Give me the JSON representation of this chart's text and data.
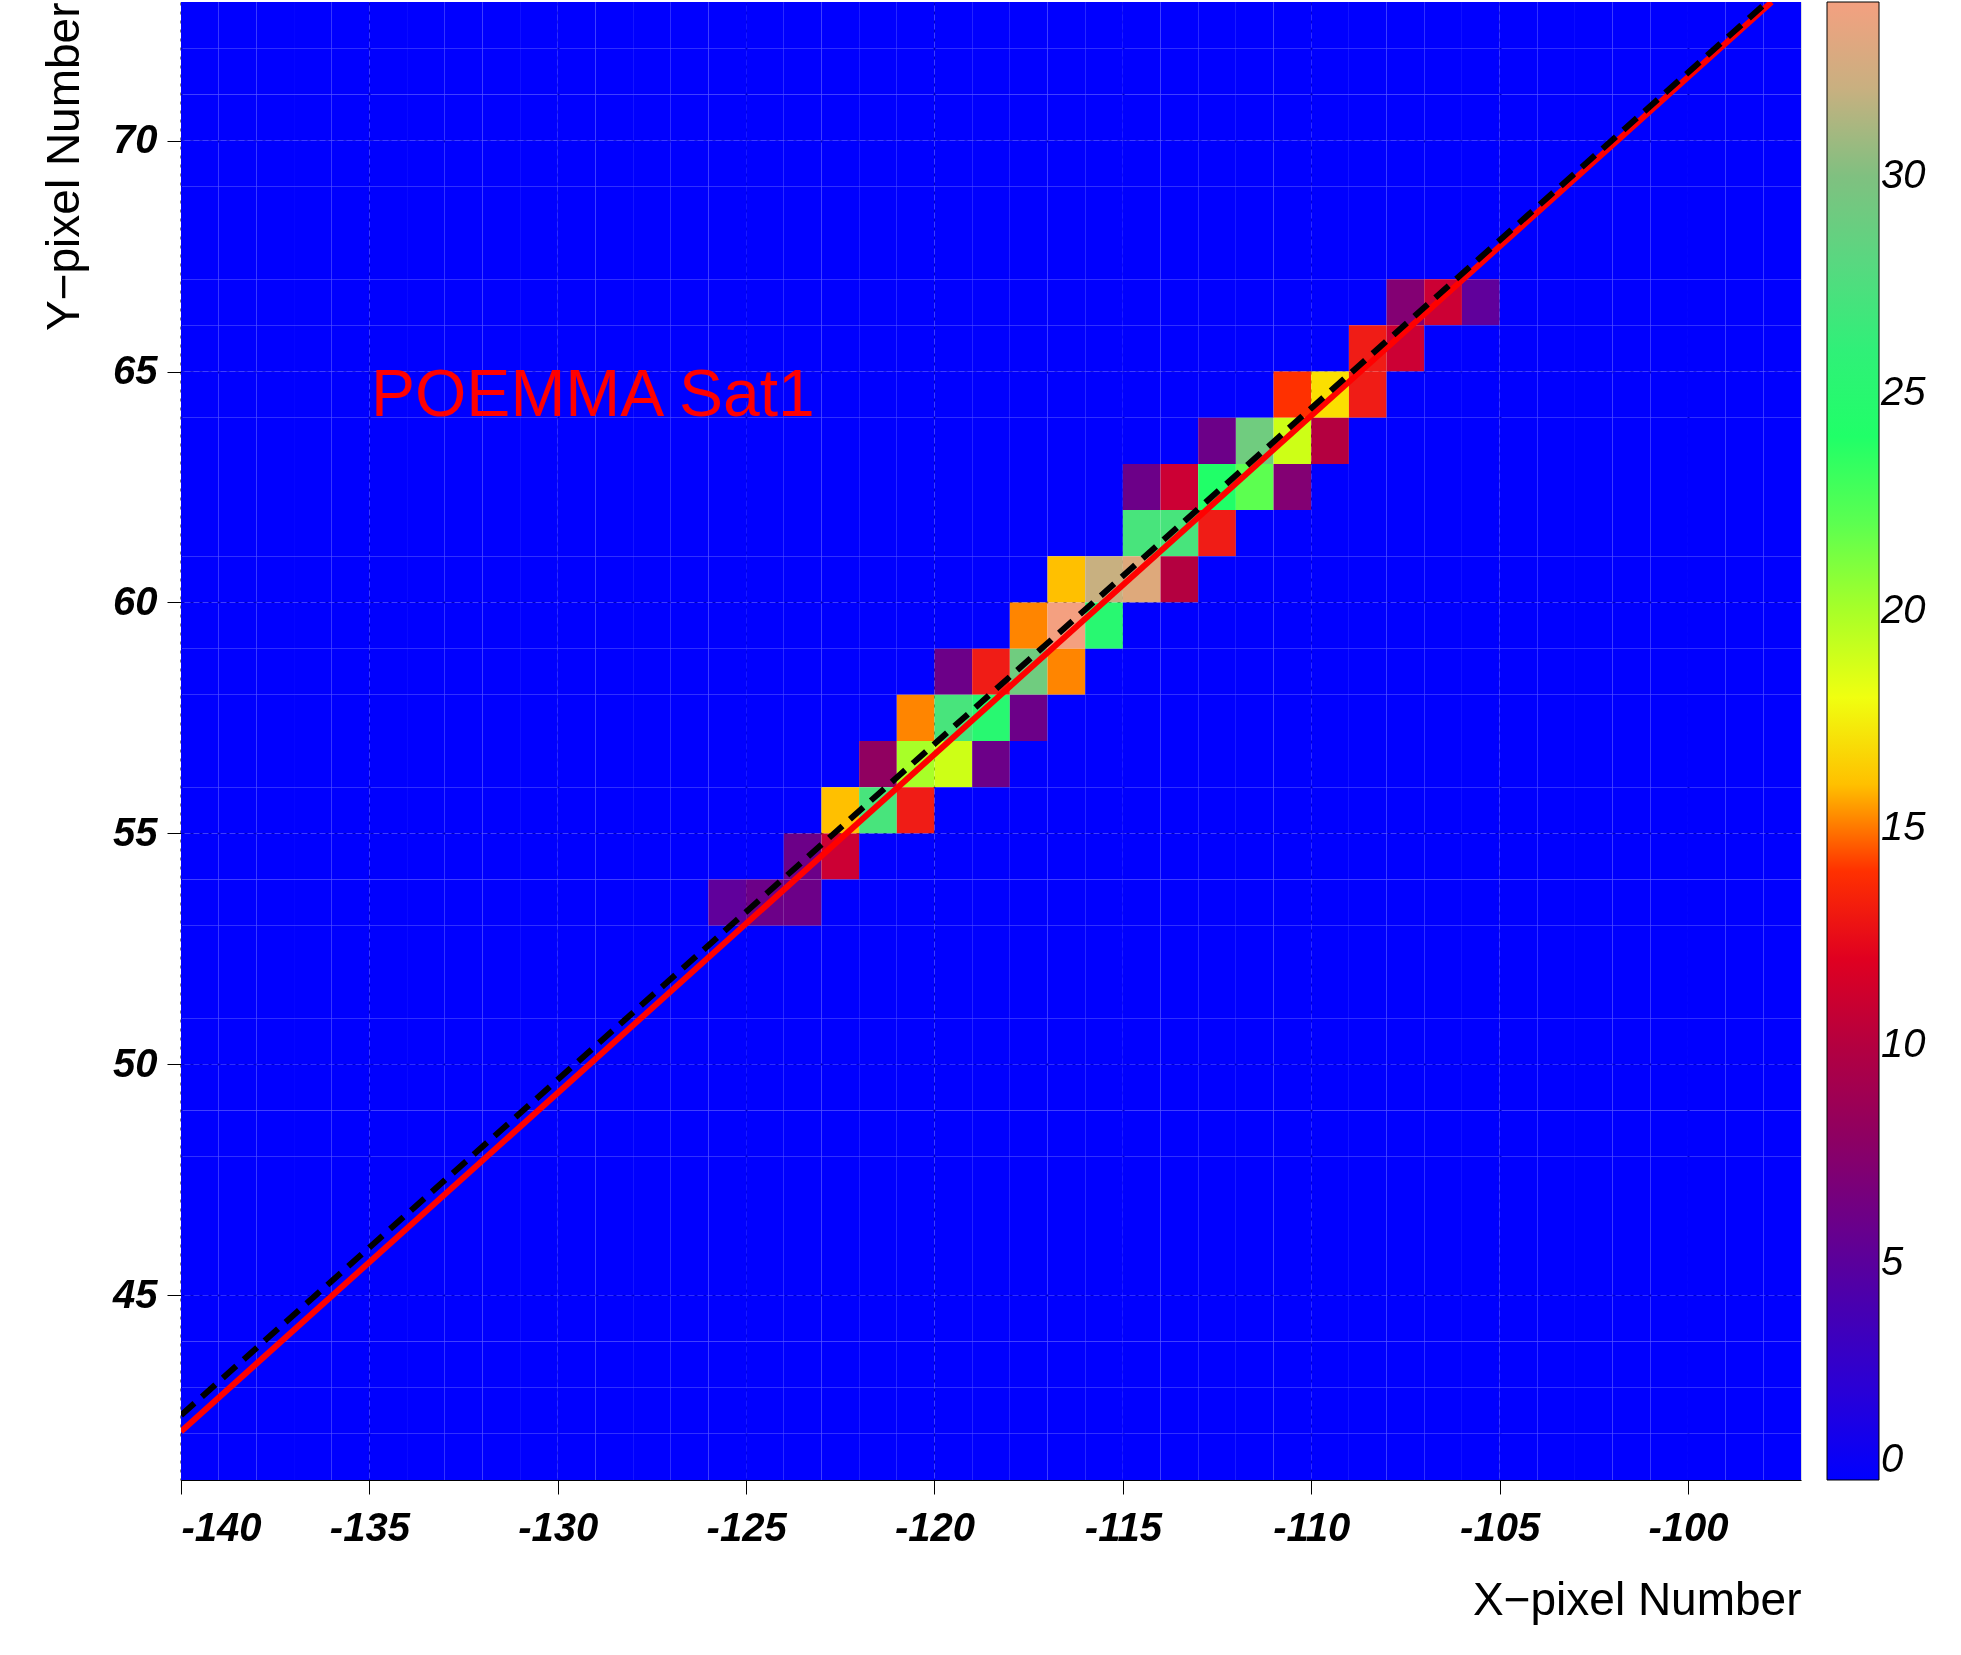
{
  "chart_data": {
    "type": "heatmap",
    "xlabel": "X−pixel Number",
    "ylabel": "Y−pixel Number",
    "annotations": [
      "POEMMA Sat1"
    ],
    "xlim": [
      -140,
      -97
    ],
    "ylim": [
      41,
      73
    ],
    "xticks": [
      -140,
      -135,
      -130,
      -125,
      -120,
      -115,
      -110,
      -105,
      -100
    ],
    "yticks": [
      45,
      50,
      55,
      60,
      65,
      70
    ],
    "clim": [
      0,
      34
    ],
    "cticks": [
      0,
      5,
      10,
      15,
      20,
      25,
      30
    ],
    "grid": true,
    "x": [
      -139.5,
      -138.5,
      -137.5,
      -136.5,
      -135.5,
      -134.5,
      -133.5,
      -132.5,
      -131.5,
      -130.5,
      -129.5,
      -128.5,
      -127.5,
      -126.5,
      -125.5,
      -124.5,
      -123.5,
      -122.5,
      -121.5,
      -120.5,
      -119.5,
      -118.5,
      -117.5,
      -116.5,
      -115.5,
      -114.5,
      -113.5,
      -112.5,
      -111.5,
      -110.5,
      -109.5,
      -108.5,
      -107.5,
      -106.5,
      -105.5,
      -104.5,
      -103.5,
      -102.5,
      -101.5,
      -100.5,
      -99.5,
      -98.5,
      -97.5
    ],
    "cells": [
      [
        0,
        0,
        0,
        0,
        0,
        0,
        0,
        0,
        0,
        0,
        0,
        0,
        0,
        0,
        0,
        0,
        0,
        0,
        0,
        0,
        0,
        0,
        0,
        0,
        0,
        0,
        0,
        0,
        0,
        0,
        0,
        0,
        0,
        0,
        0,
        0,
        0,
        0,
        0,
        0,
        0,
        0,
        0
      ],
      [
        0,
        0,
        0,
        0,
        0,
        0,
        0,
        0,
        0,
        0,
        0,
        0,
        0,
        0,
        0,
        0,
        0,
        0,
        0,
        0,
        0,
        0,
        0,
        0,
        0,
        0,
        0,
        0,
        0,
        0,
        0,
        0,
        0,
        0,
        0,
        0,
        0,
        0,
        0,
        0,
        0,
        0,
        0
      ],
      [
        0,
        0,
        0,
        0,
        0,
        0,
        0,
        0,
        0,
        0,
        0,
        0,
        0,
        0,
        0,
        0,
        0,
        0,
        0,
        0,
        0,
        0,
        0,
        0,
        0,
        0,
        0,
        0,
        0,
        0,
        0,
        0,
        0,
        0,
        0,
        0,
        0,
        0,
        0,
        0,
        0,
        0,
        0
      ],
      [
        0,
        0,
        0,
        0,
        0,
        0,
        0,
        0,
        0,
        0,
        0,
        0,
        0,
        0,
        0,
        0,
        0,
        0,
        0,
        0,
        0,
        0,
        0,
        0,
        0,
        0,
        0,
        0,
        0,
        0,
        0,
        0,
        0,
        0,
        0,
        0,
        0,
        0,
        0,
        0,
        0,
        0,
        0
      ],
      [
        0,
        0,
        0,
        0,
        0,
        0,
        0,
        0,
        0,
        0,
        0,
        0,
        0,
        0,
        0,
        0,
        0,
        0,
        0,
        0,
        0,
        0,
        0,
        0,
        0,
        0,
        0,
        0,
        0,
        0,
        0,
        0,
        0,
        0,
        0,
        0,
        0,
        0,
        0,
        0,
        0,
        0,
        0
      ],
      [
        0,
        0,
        0,
        0,
        0,
        0,
        0,
        0,
        0,
        0,
        0,
        0,
        0,
        0,
        0,
        0,
        0,
        0,
        0,
        0,
        0,
        0,
        0,
        0,
        0,
        0,
        0,
        0,
        0,
        0,
        0,
        0,
        0,
        0,
        0,
        0,
        0,
        0,
        0,
        0,
        0,
        0,
        0
      ],
      [
        0,
        0,
        0,
        0,
        0,
        0,
        0,
        0,
        0,
        0,
        0,
        0,
        0,
        0,
        0,
        0,
        0,
        0,
        0,
        0,
        0,
        0,
        0,
        0,
        0,
        0,
        0,
        0,
        0,
        0,
        0,
        0,
        7,
        11,
        5,
        0,
        0,
        0,
        0,
        0,
        0,
        0,
        0
      ],
      [
        0,
        0,
        0,
        0,
        0,
        0,
        0,
        0,
        0,
        0,
        0,
        0,
        0,
        0,
        0,
        0,
        0,
        0,
        0,
        0,
        0,
        0,
        0,
        0,
        0,
        0,
        0,
        0,
        0,
        0,
        0,
        13,
        11,
        0,
        0,
        0,
        0,
        0,
        0,
        0,
        0,
        0,
        0
      ],
      [
        0,
        0,
        0,
        0,
        0,
        0,
        0,
        0,
        0,
        0,
        0,
        0,
        0,
        0,
        0,
        0,
        0,
        0,
        0,
        0,
        0,
        0,
        0,
        0,
        0,
        0,
        0,
        0,
        0,
        14,
        17,
        13,
        0,
        0,
        0,
        0,
        0,
        0,
        0,
        0,
        0,
        0,
        0
      ],
      [
        0,
        0,
        0,
        0,
        0,
        0,
        0,
        0,
        0,
        0,
        0,
        0,
        0,
        0,
        0,
        0,
        0,
        0,
        0,
        0,
        0,
        0,
        0,
        0,
        0,
        0,
        0,
        6,
        29,
        19,
        10,
        0,
        0,
        0,
        0,
        0,
        0,
        0,
        0,
        0,
        0,
        0,
        0
      ],
      [
        0,
        0,
        0,
        0,
        0,
        0,
        0,
        0,
        0,
        0,
        0,
        0,
        0,
        0,
        0,
        0,
        0,
        0,
        0,
        0,
        0,
        0,
        0,
        0,
        0,
        6,
        11,
        24,
        22,
        7,
        0,
        0,
        0,
        0,
        0,
        0,
        0,
        0,
        0,
        0,
        0,
        0,
        0
      ],
      [
        0,
        0,
        0,
        0,
        0,
        0,
        0,
        0,
        0,
        0,
        0,
        0,
        0,
        0,
        0,
        0,
        0,
        0,
        0,
        0,
        0,
        0,
        0,
        0,
        0,
        27,
        27,
        13,
        0,
        0,
        0,
        0,
        0,
        0,
        0,
        0,
        0,
        0,
        0,
        0,
        0,
        0,
        0
      ],
      [
        0,
        0,
        0,
        0,
        0,
        0,
        0,
        0,
        0,
        0,
        0,
        0,
        0,
        0,
        0,
        0,
        0,
        0,
        0,
        0,
        0,
        0,
        0,
        16,
        32,
        33,
        10,
        0,
        0,
        0,
        0,
        0,
        0,
        0,
        0,
        0,
        0,
        0,
        0,
        0,
        0,
        0,
        0
      ],
      [
        0,
        0,
        0,
        0,
        0,
        0,
        0,
        0,
        0,
        0,
        0,
        0,
        0,
        0,
        0,
        0,
        0,
        0,
        0,
        0,
        0,
        0,
        15,
        34,
        25,
        0,
        0,
        0,
        0,
        0,
        0,
        0,
        0,
        0,
        0,
        0,
        0,
        0,
        0,
        0,
        0,
        0,
        0
      ],
      [
        0,
        0,
        0,
        0,
        0,
        0,
        0,
        0,
        0,
        0,
        0,
        0,
        0,
        0,
        0,
        0,
        0,
        0,
        0,
        0,
        6,
        13,
        29,
        15,
        0,
        0,
        0,
        0,
        0,
        0,
        0,
        0,
        0,
        0,
        0,
        0,
        0,
        0,
        0,
        0,
        0,
        0,
        0
      ],
      [
        0,
        0,
        0,
        0,
        0,
        0,
        0,
        0,
        0,
        0,
        0,
        0,
        0,
        0,
        0,
        0,
        0,
        0,
        0,
        15,
        27,
        25,
        6,
        0,
        0,
        0,
        0,
        0,
        0,
        0,
        0,
        0,
        0,
        0,
        0,
        0,
        0,
        0,
        0,
        0,
        0,
        0,
        0
      ],
      [
        0,
        0,
        0,
        0,
        0,
        0,
        0,
        0,
        0,
        0,
        0,
        0,
        0,
        0,
        0,
        0,
        0,
        0,
        8,
        20,
        19,
        6,
        0,
        0,
        0,
        0,
        0,
        0,
        0,
        0,
        0,
        0,
        0,
        0,
        0,
        0,
        0,
        0,
        0,
        0,
        0,
        0,
        0
      ],
      [
        0,
        0,
        0,
        0,
        0,
        0,
        0,
        0,
        0,
        0,
        0,
        0,
        0,
        0,
        0,
        0,
        0,
        16,
        27,
        13,
        0,
        0,
        0,
        0,
        0,
        0,
        0,
        0,
        0,
        0,
        0,
        0,
        0,
        0,
        0,
        0,
        0,
        0,
        0,
        0,
        0,
        0,
        0
      ],
      [
        0,
        0,
        0,
        0,
        0,
        0,
        0,
        0,
        0,
        0,
        0,
        0,
        0,
        0,
        0,
        0,
        6,
        11,
        0,
        0,
        0,
        0,
        0,
        0,
        0,
        0,
        0,
        0,
        0,
        0,
        0,
        0,
        0,
        0,
        0,
        0,
        0,
        0,
        0,
        0,
        0,
        0,
        0
      ],
      [
        0,
        0,
        0,
        0,
        0,
        0,
        0,
        0,
        0,
        0,
        0,
        0,
        0,
        0,
        5,
        6,
        6,
        0,
        0,
        0,
        0,
        0,
        0,
        0,
        0,
        0,
        0,
        0,
        0,
        0,
        0,
        0,
        0,
        0,
        0,
        0,
        0,
        0,
        0,
        0,
        0,
        0,
        0
      ],
      [
        0,
        0,
        0,
        0,
        0,
        0,
        0,
        0,
        0,
        0,
        0,
        0,
        0,
        0,
        0,
        0,
        0,
        0,
        0,
        0,
        0,
        0,
        0,
        0,
        0,
        0,
        0,
        0,
        0,
        0,
        0,
        0,
        0,
        0,
        0,
        0,
        0,
        0,
        0,
        0,
        0,
        0,
        0
      ],
      [
        0,
        0,
        0,
        0,
        0,
        0,
        0,
        0,
        0,
        0,
        0,
        0,
        0,
        0,
        0,
        0,
        0,
        0,
        0,
        0,
        0,
        0,
        0,
        0,
        0,
        0,
        0,
        0,
        0,
        0,
        0,
        0,
        0,
        0,
        0,
        0,
        0,
        0,
        0,
        0,
        0,
        0,
        0
      ],
      [
        0,
        0,
        0,
        0,
        0,
        0,
        0,
        0,
        0,
        0,
        0,
        0,
        0,
        0,
        0,
        0,
        0,
        0,
        0,
        0,
        0,
        0,
        0,
        0,
        0,
        0,
        0,
        0,
        0,
        0,
        0,
        0,
        0,
        0,
        0,
        0,
        0,
        0,
        0,
        0,
        0,
        0,
        0
      ],
      [
        0,
        0,
        0,
        0,
        0,
        0,
        0,
        0,
        0,
        0,
        0,
        0,
        0,
        0,
        0,
        0,
        0,
        0,
        0,
        0,
        0,
        0,
        0,
        0,
        0,
        0,
        0,
        0,
        0,
        0,
        0,
        0,
        0,
        0,
        0,
        0,
        0,
        0,
        0,
        0,
        0,
        0,
        0
      ],
      [
        0,
        0,
        0,
        0,
        0,
        0,
        0,
        0,
        0,
        0,
        0,
        0,
        0,
        0,
        0,
        0,
        0,
        0,
        0,
        0,
        0,
        0,
        0,
        0,
        0,
        0,
        0,
        0,
        0,
        0,
        0,
        0,
        0,
        0,
        0,
        0,
        0,
        0,
        0,
        0,
        0,
        0,
        0
      ],
      [
        0,
        0,
        0,
        0,
        0,
        0,
        0,
        0,
        0,
        0,
        0,
        0,
        0,
        0,
        0,
        0,
        0,
        0,
        0,
        0,
        0,
        0,
        0,
        0,
        0,
        0,
        0,
        0,
        0,
        0,
        0,
        0,
        0,
        0,
        0,
        0,
        0,
        0,
        0,
        0,
        0,
        0,
        0
      ],
      [
        0,
        0,
        0,
        0,
        0,
        0,
        0,
        0,
        0,
        0,
        0,
        0,
        0,
        0,
        0,
        0,
        0,
        0,
        0,
        0,
        0,
        0,
        0,
        0,
        0,
        0,
        0,
        0,
        0,
        0,
        0,
        0,
        0,
        0,
        0,
        0,
        0,
        0,
        0,
        0,
        0,
        0,
        0
      ],
      [
        0,
        0,
        0,
        0,
        0,
        0,
        0,
        0,
        0,
        0,
        0,
        0,
        0,
        0,
        0,
        0,
        0,
        0,
        0,
        0,
        0,
        0,
        0,
        0,
        0,
        0,
        0,
        0,
        0,
        0,
        0,
        0,
        0,
        0,
        0,
        0,
        0,
        0,
        0,
        0,
        0,
        0,
        0
      ],
      [
        0,
        0,
        0,
        0,
        0,
        0,
        0,
        0,
        0,
        0,
        0,
        0,
        0,
        0,
        0,
        0,
        0,
        0,
        0,
        0,
        0,
        0,
        0,
        0,
        0,
        0,
        0,
        0,
        0,
        0,
        0,
        0,
        0,
        0,
        0,
        0,
        0,
        0,
        0,
        0,
        0,
        0,
        0
      ],
      [
        0,
        0,
        0,
        0,
        0,
        0,
        0,
        0,
        0,
        0,
        0,
        0,
        0,
        0,
        0,
        0,
        0,
        0,
        0,
        0,
        0,
        0,
        0,
        0,
        0,
        0,
        0,
        0,
        0,
        0,
        0,
        0,
        0,
        0,
        0,
        0,
        0,
        0,
        0,
        0,
        0,
        0,
        0
      ],
      [
        0,
        0,
        0,
        0,
        0,
        0,
        0,
        0,
        0,
        0,
        0,
        0,
        0,
        0,
        0,
        0,
        0,
        0,
        0,
        0,
        0,
        0,
        0,
        0,
        0,
        0,
        0,
        0,
        0,
        0,
        0,
        0,
        0,
        0,
        0,
        0,
        0,
        0,
        0,
        0,
        0,
        0,
        0
      ],
      [
        0,
        0,
        0,
        0,
        0,
        0,
        0,
        0,
        0,
        0,
        0,
        0,
        0,
        0,
        0,
        0,
        0,
        0,
        0,
        0,
        0,
        0,
        0,
        0,
        0,
        0,
        0,
        0,
        0,
        0,
        0,
        0,
        0,
        0,
        0,
        0,
        0,
        0,
        0,
        0,
        0,
        0,
        0
      ]
    ],
    "series": [
      {
        "type": "line",
        "color": "#ff0000",
        "line_style": "solid",
        "x": [
          -140,
          -97.78
        ],
        "values": [
          42.05,
          73
        ]
      },
      {
        "type": "line",
        "color": "#000000",
        "line_style": "dashed",
        "x": [
          -140,
          -97.9
        ],
        "values": [
          42.4,
          73
        ]
      }
    ]
  }
}
